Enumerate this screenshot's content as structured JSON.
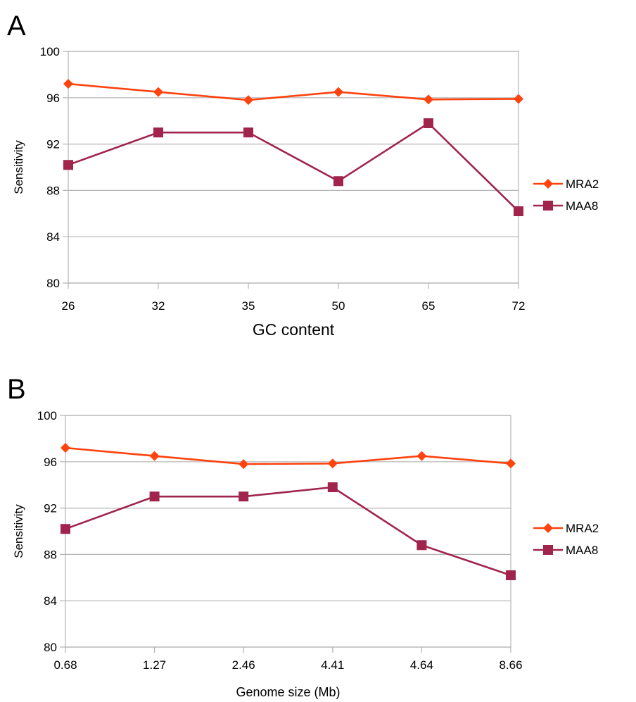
{
  "chart_data": [
    {
      "type": "line",
      "panel": "A",
      "categories": [
        "26",
        "32",
        "35",
        "50",
        "65",
        "72"
      ],
      "series": [
        {
          "name": "MRA2",
          "values": [
            97.2,
            96.5,
            95.8,
            96.5,
            95.85,
            95.9
          ],
          "color": "#ff420e",
          "marker": "diamond"
        },
        {
          "name": "MAA8",
          "values": [
            90.2,
            93.0,
            93.0,
            88.8,
            93.8,
            86.2
          ],
          "color": "#a0244c",
          "marker": "square"
        }
      ],
      "xlabel": "GC content",
      "ylabel": "Sensitivity",
      "ylim": [
        80,
        100
      ],
      "yticks": [
        "80",
        "84",
        "88",
        "92",
        "96",
        "100"
      ],
      "grid": "horizontal",
      "legend_position": "right"
    },
    {
      "type": "line",
      "panel": "B",
      "categories": [
        "0.68",
        "1.27",
        "2.46",
        "4.41",
        "4.64",
        "8.66"
      ],
      "series": [
        {
          "name": "MRA2",
          "values": [
            97.2,
            96.5,
            95.8,
            95.85,
            96.5,
            95.85
          ],
          "color": "#ff420e",
          "marker": "diamond"
        },
        {
          "name": "MAA8",
          "values": [
            90.2,
            93.0,
            93.0,
            93.8,
            88.8,
            86.2
          ],
          "color": "#a0244c",
          "marker": "square"
        }
      ],
      "xlabel": "Genome size (Mb)",
      "ylabel": "Sensitivity",
      "ylim": [
        80,
        100
      ],
      "yticks": [
        "80",
        "84",
        "88",
        "92",
        "96",
        "100"
      ],
      "grid": "horizontal",
      "legend_position": "right"
    }
  ]
}
